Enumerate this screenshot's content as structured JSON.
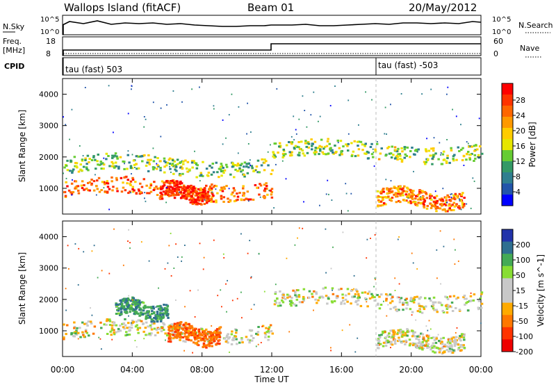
{
  "header": {
    "station": "Wallops Island (fitACF)",
    "beam": "Beam 01",
    "date": "20/May/2012"
  },
  "panels": {
    "nsky_label": "N.Sky",
    "nsky_ticks": [
      "10^5",
      "10^0"
    ],
    "nsearch_label": "N.Search",
    "nsearch_ticks": [
      "10^5",
      "10^0"
    ],
    "freq_label": "Freq.",
    "freq_unit": "[MHz]",
    "freq_ticks": [
      "18",
      "8"
    ],
    "nave_label": "Nave",
    "nave_ticks": [
      "60",
      "0"
    ],
    "cpid_label": "CPID",
    "cpid_segments": [
      {
        "label": "tau (fast) 503",
        "start_hour": 0
      },
      {
        "label": "tau (fast) -503",
        "start_hour": 18
      }
    ]
  },
  "power_colorbar": {
    "title": "Power [dB]",
    "ticks": [
      "28",
      "24",
      "20",
      "16",
      "12",
      "8",
      "4"
    ],
    "colors": [
      "#ff0000",
      "#ff3300",
      "#ff6600",
      "#ff9900",
      "#ffcc00",
      "#e6e600",
      "#66cc33",
      "#339966",
      "#2f7f8f",
      "#2255aa",
      "#0000ff"
    ]
  },
  "velocity_colorbar": {
    "title": "Velocity [m s^-1]",
    "ticks": [
      "200",
      "100",
      "50",
      "15",
      "-15",
      "-50",
      "-100",
      "-200"
    ],
    "colors": [
      "#2233aa",
      "#2f6f90",
      "#44aa55",
      "#88dd33",
      "#c8c8c8",
      "#c8c8c8",
      "#ffaa00",
      "#ff7700",
      "#ff3300",
      "#ee0000"
    ]
  },
  "chart_data": [
    {
      "type": "heatmap",
      "name": "power",
      "xlabel": "Time UT",
      "ylabel": "Slant Range [km]",
      "x_ticks": [
        "00:00",
        "04:00",
        "08:00",
        "12:00",
        "16:00",
        "20:00",
        "00:00"
      ],
      "y_ticks": [
        1000,
        2000,
        3000,
        4000
      ],
      "xlim_hours": [
        0,
        24
      ],
      "ylim_km": [
        180,
        4500
      ],
      "echo_regions": [
        {
          "t0": 0.0,
          "t1": 12.0,
          "r_center": 1000,
          "level_db": 26
        },
        {
          "t0": 0.0,
          "t1": 12.0,
          "r_center": 1750,
          "level_db": 14
        },
        {
          "t0": 5.5,
          "t1": 8.5,
          "r_center": 900,
          "level_db": 30
        },
        {
          "t0": 12.0,
          "t1": 24.0,
          "r_center": 2200,
          "level_db": 15
        },
        {
          "t0": 18.0,
          "t1": 23.0,
          "r_center": 700,
          "level_db": 25
        }
      ]
    },
    {
      "type": "heatmap",
      "name": "velocity",
      "xlabel": "Time UT",
      "ylabel": "Slant Range [km]",
      "x_ticks": [
        "00:00",
        "04:00",
        "08:00",
        "12:00",
        "16:00",
        "20:00",
        "00:00"
      ],
      "y_ticks": [
        1000,
        2000,
        3000,
        4000
      ],
      "xlim_hours": [
        0,
        24
      ],
      "ylim_km": [
        180,
        4500
      ],
      "echo_regions": [
        {
          "t0": 0.0,
          "t1": 12.0,
          "r_center": 1000,
          "velocity": 0
        },
        {
          "t0": 3.0,
          "t1": 6.0,
          "r_center": 1700,
          "velocity": 60
        },
        {
          "t0": 6.0,
          "t1": 9.0,
          "r_center": 900,
          "velocity": -60
        },
        {
          "t0": 12.0,
          "t1": 24.0,
          "r_center": 2000,
          "velocity": 0
        },
        {
          "t0": 18.0,
          "t1": 23.0,
          "r_center": 700,
          "velocity": 0
        }
      ]
    }
  ]
}
